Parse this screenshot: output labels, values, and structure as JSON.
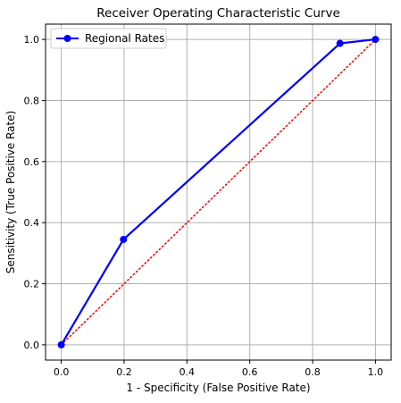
{
  "chart_data": {
    "type": "line",
    "title": "Receiver Operating Characteristic Curve",
    "xlabel": "1 - Specificity (False Positive Rate)",
    "ylabel": "Sensitivity (True Positive Rate)",
    "xlim": [
      -0.05,
      1.05
    ],
    "ylim": [
      -0.05,
      1.05
    ],
    "xticks": [
      0.0,
      0.2,
      0.4,
      0.6,
      0.8,
      1.0
    ],
    "yticks": [
      0.0,
      0.2,
      0.4,
      0.6,
      0.8,
      1.0
    ],
    "xtick_labels": [
      "0.0",
      "0.2",
      "0.4",
      "0.6",
      "0.8",
      "1.0"
    ],
    "ytick_labels": [
      "0.0",
      "0.2",
      "0.4",
      "0.6",
      "0.8",
      "1.0"
    ],
    "grid": true,
    "legend_position": "top-left",
    "series": [
      {
        "name": "Regional Rates",
        "color": "#0000ff",
        "marker": "circle",
        "x": [
          0.0,
          0.198,
          0.887,
          1.0
        ],
        "y": [
          0.0,
          0.345,
          0.987,
          1.0
        ]
      }
    ],
    "reference_line": {
      "style": "dotted",
      "color": "#ff0000",
      "x": [
        0.0,
        1.0
      ],
      "y": [
        0.0,
        1.0
      ]
    }
  }
}
